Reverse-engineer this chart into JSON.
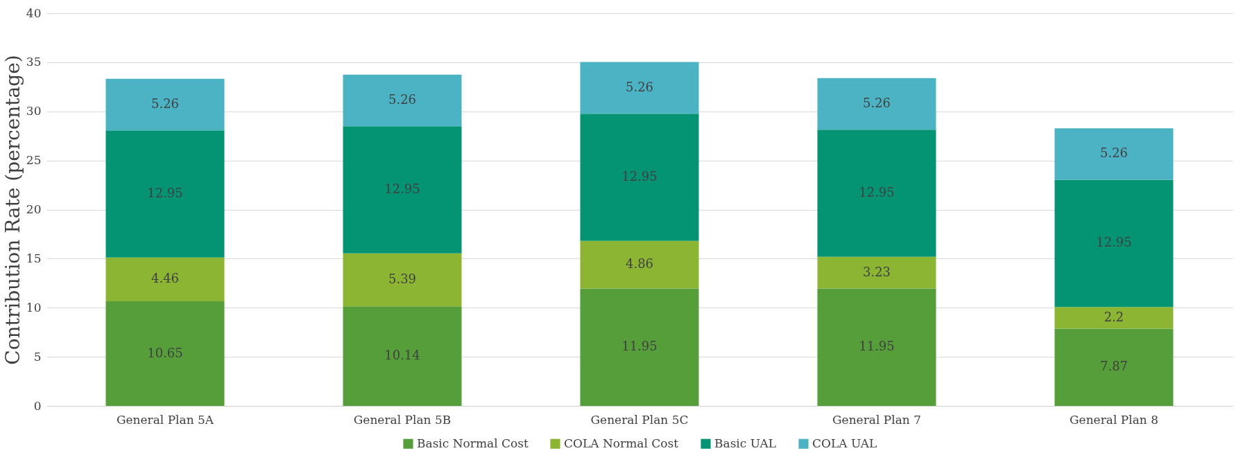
{
  "chart_data": {
    "type": "bar",
    "stacked": true,
    "ylabel": "Contribution Rate (percentage)",
    "categories": [
      "General Plan 5A",
      "General Plan 5B",
      "General Plan 5C",
      "General Plan 7",
      "General Plan 8"
    ],
    "series": [
      {
        "name": "Basic Normal Cost",
        "color": "#559e3a",
        "values": [
          10.65,
          10.14,
          11.95,
          11.95,
          7.87
        ]
      },
      {
        "name": "COLA Normal Cost",
        "color": "#8bb533",
        "values": [
          4.46,
          5.39,
          4.86,
          3.23,
          2.2
        ]
      },
      {
        "name": "Basic UAL",
        "color": "#049474",
        "values": [
          12.95,
          12.95,
          12.95,
          12.95,
          12.95
        ]
      },
      {
        "name": "COLA UAL",
        "color": "#4bb3c4",
        "values": [
          5.26,
          5.26,
          5.26,
          5.26,
          5.26
        ]
      }
    ],
    "ylim": [
      0,
      40
    ],
    "yticks": [
      0,
      5,
      10,
      15,
      20,
      25,
      30,
      35,
      40
    ],
    "grid": "y",
    "legend": "bottom",
    "data_labels": true
  }
}
